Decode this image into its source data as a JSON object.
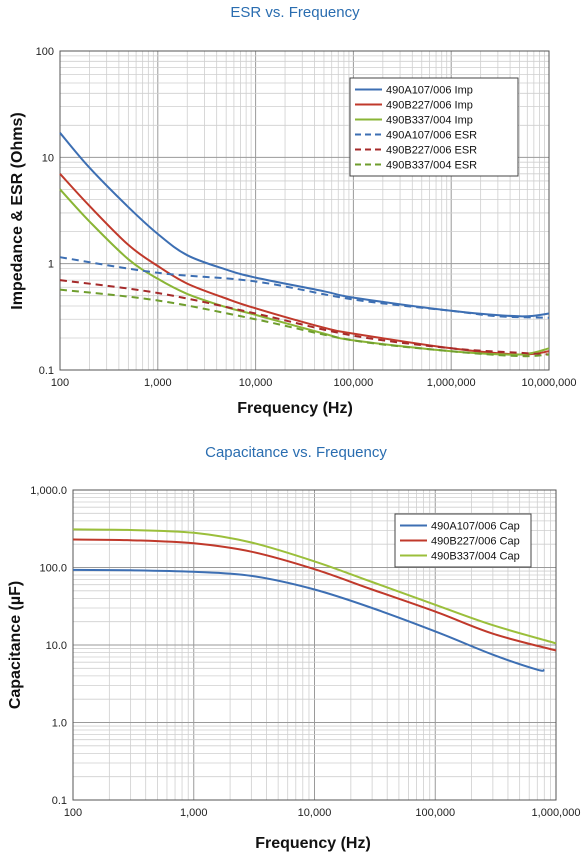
{
  "chart_data": [
    {
      "type": "line",
      "title": "ESR vs. Frequency",
      "xlabel": "Frequency (Hz)",
      "ylabel": "Impedance & ESR (Ohms)",
      "xscale": "log",
      "yscale": "log",
      "xlim": [
        100,
        10000000
      ],
      "ylim": [
        0.1,
        100
      ],
      "grid": true,
      "legend_position": "top-right",
      "xtick_labels": [
        "100",
        "1,000",
        "10,000",
        "100,000",
        "1,000,000",
        "10,000,000"
      ],
      "ytick_labels": [
        "0.1",
        "1",
        "10",
        "100"
      ],
      "series": [
        {
          "name": "490A107/006 Imp",
          "color": "#3d6fb3",
          "dash": false,
          "x": [
            100,
            200,
            500,
            1000,
            2000,
            5000,
            10000,
            50000,
            100000,
            1000000,
            5000000,
            10000000
          ],
          "y": [
            17.0,
            8.0,
            3.4,
            1.9,
            1.2,
            0.88,
            0.74,
            0.55,
            0.48,
            0.36,
            0.32,
            0.34
          ]
        },
        {
          "name": "490B227/006 Imp",
          "color": "#c0392b",
          "dash": false,
          "x": [
            100,
            200,
            500,
            1000,
            2000,
            5000,
            10000,
            50000,
            100000,
            1000000,
            5000000,
            10000000
          ],
          "y": [
            7.0,
            3.5,
            1.5,
            0.95,
            0.65,
            0.47,
            0.38,
            0.25,
            0.22,
            0.16,
            0.14,
            0.15
          ]
        },
        {
          "name": "490B337/004 Imp",
          "color": "#8ab536",
          "dash": false,
          "x": [
            100,
            200,
            500,
            1000,
            2000,
            5000,
            10000,
            50000,
            100000,
            1000000,
            5000000,
            10000000
          ],
          "y": [
            5.0,
            2.5,
            1.1,
            0.72,
            0.52,
            0.39,
            0.33,
            0.22,
            0.19,
            0.15,
            0.14,
            0.16
          ]
        },
        {
          "name": "490A107/006 ESR",
          "color": "#3d6fb3",
          "dash": true,
          "x": [
            100,
            1000,
            10000,
            100000,
            1000000,
            3000000,
            10000000
          ],
          "y": [
            1.15,
            0.82,
            0.68,
            0.46,
            0.36,
            0.32,
            0.31
          ]
        },
        {
          "name": "490B227/006 ESR",
          "color": "#a52a2a",
          "dash": true,
          "x": [
            100,
            1000,
            10000,
            100000,
            1000000,
            5000000,
            10000000
          ],
          "y": [
            0.7,
            0.53,
            0.34,
            0.21,
            0.16,
            0.145,
            0.14
          ]
        },
        {
          "name": "490B337/004 ESR",
          "color": "#6f9e2e",
          "dash": true,
          "x": [
            100,
            1000,
            10000,
            100000,
            1000000,
            5000000,
            10000000
          ],
          "y": [
            0.57,
            0.45,
            0.3,
            0.19,
            0.15,
            0.135,
            0.14
          ]
        }
      ]
    },
    {
      "type": "line",
      "title": "Capacitance vs. Frequency",
      "xlabel": "Frequency (Hz)",
      "ylabel": "Capacitance (µF)",
      "xscale": "log",
      "yscale": "log",
      "xlim": [
        100,
        1000000
      ],
      "ylim": [
        0.1,
        1000
      ],
      "grid": true,
      "legend_position": "top-right",
      "xtick_labels": [
        "100",
        "1,000",
        "10,000",
        "100,000",
        "1,000,000"
      ],
      "ytick_labels": [
        "0.1",
        "1.0",
        "10.0",
        "100.0",
        "1,000.0"
      ],
      "series": [
        {
          "name": "490A107/006 Cap",
          "color": "#3d6fb3",
          "dash": false,
          "x": [
            100,
            300,
            1000,
            3000,
            10000,
            30000,
            100000,
            300000,
            700000,
            800000
          ],
          "y": [
            93,
            92,
            88,
            78,
            52,
            30,
            15,
            7.5,
            4.8,
            4.8
          ]
        },
        {
          "name": "490B227/006 Cap",
          "color": "#c0392b",
          "dash": false,
          "x": [
            100,
            300,
            1000,
            3000,
            10000,
            30000,
            100000,
            300000,
            1000000
          ],
          "y": [
            230,
            225,
            205,
            160,
            95,
            52,
            27,
            14,
            8.5
          ]
        },
        {
          "name": "490B337/004 Cap",
          "color": "#9bbf3b",
          "dash": false,
          "x": [
            100,
            300,
            1000,
            3000,
            10000,
            30000,
            100000,
            300000,
            1000000
          ],
          "y": [
            310,
            305,
            280,
            210,
            120,
            65,
            33,
            18,
            10.5
          ]
        }
      ]
    }
  ]
}
